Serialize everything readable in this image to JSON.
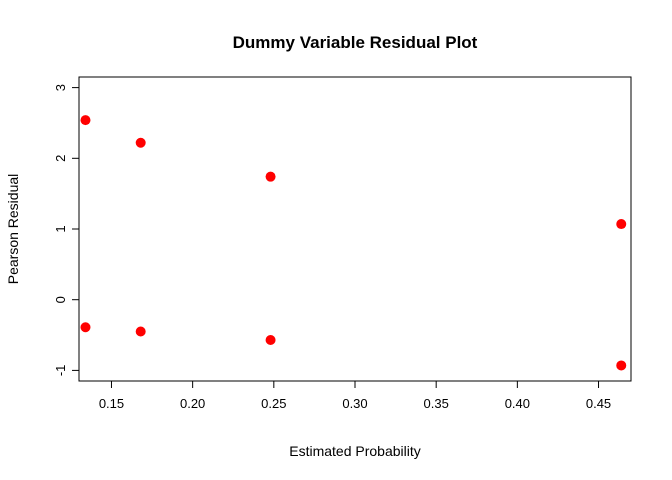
{
  "chart_data": {
    "type": "scatter",
    "title": "Dummy Variable Residual Plot",
    "xlabel": "Estimated Probability",
    "ylabel": "Pearson Residual",
    "xlim": [
      0.13,
      0.47
    ],
    "ylim": [
      -1.15,
      3.15
    ],
    "xticks": [
      0.15,
      0.2,
      0.25,
      0.3,
      0.35,
      0.4,
      0.45
    ],
    "xtick_labels": [
      "0.15",
      "0.20",
      "0.25",
      "0.30",
      "0.35",
      "0.40",
      "0.45"
    ],
    "yticks": [
      -1,
      0,
      1,
      2,
      3
    ],
    "ytick_labels": [
      "-1",
      "0",
      "1",
      "2",
      "3"
    ],
    "grid": false,
    "point_color": "#ff0000",
    "points": [
      {
        "x": 0.134,
        "y": 2.54
      },
      {
        "x": 0.168,
        "y": 2.22
      },
      {
        "x": 0.248,
        "y": 1.74
      },
      {
        "x": 0.464,
        "y": 1.07
      },
      {
        "x": 0.134,
        "y": -0.39
      },
      {
        "x": 0.168,
        "y": -0.45
      },
      {
        "x": 0.248,
        "y": -0.57
      },
      {
        "x": 0.464,
        "y": -0.93
      }
    ]
  }
}
